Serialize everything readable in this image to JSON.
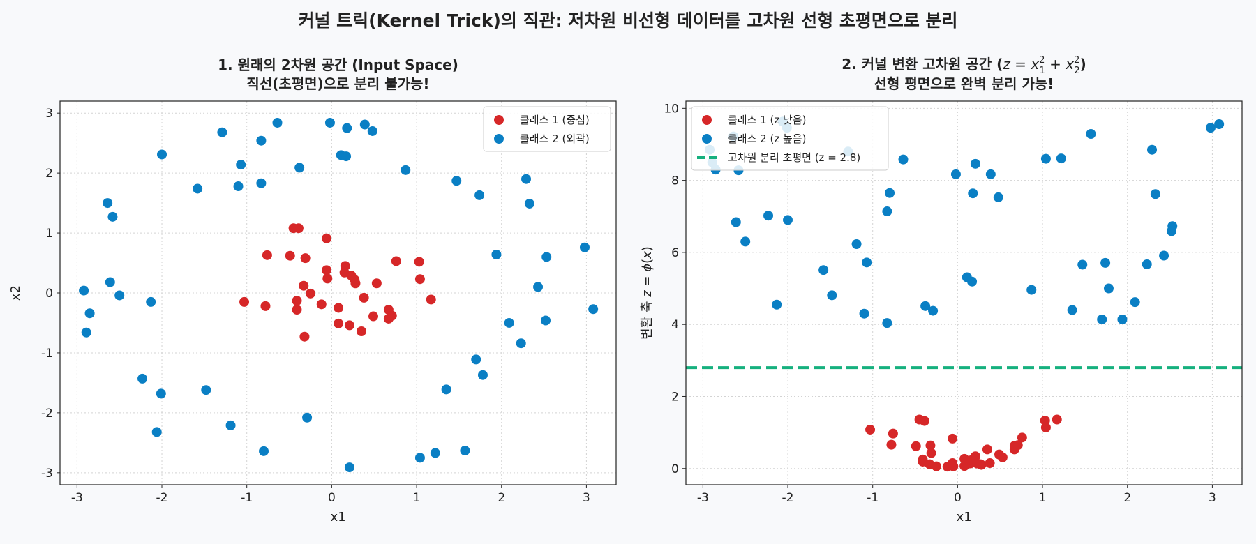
{
  "figure": {
    "suptitle": "커널 트릭(Kernel Trick)의 직관: 저차원 비선형 데이터를 고차원 선형 초평면으로 분리"
  },
  "colors": {
    "class1": "#d62728",
    "class2": "#0a7fc4",
    "boundary": "#16b07e",
    "grid": "#d3d3d3",
    "background": "#f8f9fb"
  },
  "chart_data": [
    {
      "type": "scatter",
      "title_lines": [
        "1. 원래의 2차원 공간 (Input Space)",
        "직선(초평면)으로 분리 불가능!"
      ],
      "xlabel": "x1",
      "ylabel": "x2",
      "xlim": [
        -3.2,
        3.35
      ],
      "ylim": [
        -3.2,
        3.2
      ],
      "xticks": [
        -3,
        -2,
        -1,
        0,
        1,
        2,
        3
      ],
      "yticks": [
        -3,
        -2,
        -1,
        0,
        1,
        2,
        3
      ],
      "grid": true,
      "legend_position": "top-right",
      "series": [
        {
          "name": "클래스 1 (중심)",
          "color": "#d62728",
          "points": [
            [
              -1.03,
              -0.15
            ],
            [
              -0.78,
              -0.22
            ],
            [
              -0.76,
              0.63
            ],
            [
              -0.49,
              0.62
            ],
            [
              -0.45,
              1.08
            ],
            [
              -0.39,
              1.08
            ],
            [
              -0.41,
              -0.13
            ],
            [
              -0.41,
              -0.28
            ],
            [
              -0.33,
              0.12
            ],
            [
              -0.31,
              0.58
            ],
            [
              -0.32,
              -0.73
            ],
            [
              -0.25,
              -0.01
            ],
            [
              -0.12,
              -0.19
            ],
            [
              -0.06,
              0.91
            ],
            [
              -0.06,
              0.38
            ],
            [
              -0.05,
              0.24
            ],
            [
              0.08,
              -0.25
            ],
            [
              0.08,
              -0.51
            ],
            [
              0.15,
              0.34
            ],
            [
              0.16,
              0.45
            ],
            [
              0.21,
              -0.54
            ],
            [
              0.23,
              0.29
            ],
            [
              0.27,
              0.22
            ],
            [
              0.28,
              0.16
            ],
            [
              0.35,
              -0.64
            ],
            [
              0.38,
              -0.08
            ],
            [
              0.49,
              -0.39
            ],
            [
              0.53,
              0.16
            ],
            [
              0.67,
              -0.28
            ],
            [
              0.67,
              -0.43
            ],
            [
              0.71,
              -0.38
            ],
            [
              0.76,
              0.53
            ],
            [
              1.03,
              0.52
            ],
            [
              1.04,
              0.23
            ],
            [
              1.17,
              -0.11
            ]
          ]
        },
        {
          "name": "클래스 2 (외곽)",
          "color": "#0a7fc4",
          "points": [
            [
              -2.92,
              0.04
            ],
            [
              -2.89,
              -0.66
            ],
            [
              -2.85,
              -0.34
            ],
            [
              -2.64,
              1.5
            ],
            [
              -2.61,
              0.18
            ],
            [
              -2.58,
              1.27
            ],
            [
              -2.5,
              -0.04
            ],
            [
              -2.23,
              -1.43
            ],
            [
              -2.13,
              -0.15
            ],
            [
              -2.06,
              -2.32
            ],
            [
              -2.01,
              -1.68
            ],
            [
              -2.0,
              2.31
            ],
            [
              -1.58,
              1.74
            ],
            [
              -1.48,
              -1.62
            ],
            [
              -1.29,
              2.68
            ],
            [
              -1.19,
              -2.21
            ],
            [
              -1.1,
              1.78
            ],
            [
              -1.07,
              2.14
            ],
            [
              -0.83,
              2.54
            ],
            [
              -0.83,
              1.83
            ],
            [
              -0.8,
              -2.64
            ],
            [
              -0.64,
              2.84
            ],
            [
              -0.38,
              2.09
            ],
            [
              -0.29,
              -2.08
            ],
            [
              -0.02,
              2.84
            ],
            [
              0.11,
              2.3
            ],
            [
              0.17,
              2.28
            ],
            [
              0.18,
              2.75
            ],
            [
              0.21,
              -2.91
            ],
            [
              0.39,
              2.81
            ],
            [
              0.48,
              2.7
            ],
            [
              0.87,
              2.05
            ],
            [
              1.04,
              -2.75
            ],
            [
              1.22,
              -2.67
            ],
            [
              1.35,
              -1.61
            ],
            [
              1.47,
              1.87
            ],
            [
              1.57,
              -2.63
            ],
            [
              1.7,
              -1.11
            ],
            [
              1.74,
              1.63
            ],
            [
              1.78,
              -1.37
            ],
            [
              1.94,
              0.64
            ],
            [
              2.09,
              -0.5
            ],
            [
              2.23,
              -0.84
            ],
            [
              2.29,
              1.9
            ],
            [
              2.33,
              1.49
            ],
            [
              2.43,
              0.1
            ],
            [
              2.52,
              -0.46
            ],
            [
              2.53,
              0.6
            ],
            [
              2.98,
              0.76
            ],
            [
              3.08,
              -0.27
            ]
          ]
        }
      ]
    },
    {
      "type": "scatter",
      "title_prefix": "2. 커널 변환 고차원 공간 (",
      "title_suffix": ")",
      "title_line2": "선형 평면으로 완벽 분리 가능!",
      "title_formula": {
        "z": "z",
        "x": "x",
        "eq": " = ",
        "plus": " + ",
        "sub1": "1",
        "sub2": "2",
        "sup": "2"
      },
      "xlabel": "x1",
      "ylabel_text": "변환 축 ",
      "ylabel_formula": {
        "z": "z",
        "eq": " = ",
        "phi": "ϕ",
        "open": "(",
        "x": "x",
        "close": ")"
      },
      "xlim": [
        -3.2,
        3.35
      ],
      "ylim": [
        -0.45,
        10.2
      ],
      "xticks": [
        -3,
        -2,
        -1,
        0,
        1,
        2,
        3
      ],
      "yticks": [
        0,
        2,
        4,
        6,
        8,
        10
      ],
      "grid": true,
      "legend_position": "top-left",
      "boundary": {
        "z": 2.8,
        "label": "고차원 분리 초평면 (z = 2.8)"
      },
      "series": [
        {
          "name": "클래스 1 (z 낮음)",
          "color": "#d62728",
          "points": [
            [
              -1.03,
              1.08
            ],
            [
              -0.78,
              0.66
            ],
            [
              -0.76,
              0.97
            ],
            [
              -0.49,
              0.62
            ],
            [
              -0.45,
              1.36
            ],
            [
              -0.39,
              1.32
            ],
            [
              -0.41,
              0.19
            ],
            [
              -0.41,
              0.25
            ],
            [
              -0.33,
              0.12
            ],
            [
              -0.31,
              0.43
            ],
            [
              -0.32,
              0.64
            ],
            [
              -0.25,
              0.06
            ],
            [
              -0.12,
              0.05
            ],
            [
              -0.06,
              0.83
            ],
            [
              -0.06,
              0.15
            ],
            [
              -0.05,
              0.06
            ],
            [
              0.08,
              0.07
            ],
            [
              0.08,
              0.27
            ],
            [
              0.15,
              0.14
            ],
            [
              0.16,
              0.23
            ],
            [
              0.21,
              0.34
            ],
            [
              0.23,
              0.14
            ],
            [
              0.27,
              0.12
            ],
            [
              0.28,
              0.1
            ],
            [
              0.35,
              0.53
            ],
            [
              0.38,
              0.15
            ],
            [
              0.49,
              0.39
            ],
            [
              0.53,
              0.31
            ],
            [
              0.67,
              0.53
            ],
            [
              0.67,
              0.63
            ],
            [
              0.71,
              0.65
            ],
            [
              0.76,
              0.86
            ],
            [
              1.03,
              1.33
            ],
            [
              1.04,
              1.14
            ],
            [
              1.17,
              1.36
            ]
          ]
        },
        {
          "name": "클래스 2 (z 높음)",
          "color": "#0a7fc4",
          "points": [
            [
              -2.92,
              8.85
            ],
            [
              -2.89,
              8.5
            ],
            [
              -2.85,
              8.3
            ],
            [
              -2.64,
              9.22
            ],
            [
              -2.61,
              6.84
            ],
            [
              -2.58,
              8.28
            ],
            [
              -2.5,
              6.3
            ],
            [
              -2.23,
              7.02
            ],
            [
              -2.13,
              4.55
            ],
            [
              -2.06,
              9.63
            ],
            [
              -2.01,
              9.46
            ],
            [
              -2.0,
              6.9
            ],
            [
              -1.58,
              5.51
            ],
            [
              -1.48,
              4.81
            ],
            [
              -1.29,
              8.8
            ],
            [
              -1.19,
              6.23
            ],
            [
              -1.1,
              4.3
            ],
            [
              -1.07,
              5.72
            ],
            [
              -0.83,
              7.14
            ],
            [
              -0.83,
              4.04
            ],
            [
              -0.8,
              7.65
            ],
            [
              -0.64,
              8.58
            ],
            [
              -0.38,
              4.51
            ],
            [
              -0.29,
              4.38
            ],
            [
              -0.02,
              8.17
            ],
            [
              0.11,
              5.31
            ],
            [
              0.17,
              5.19
            ],
            [
              0.18,
              7.64
            ],
            [
              0.21,
              8.46
            ],
            [
              0.39,
              8.17
            ],
            [
              0.48,
              7.53
            ],
            [
              0.87,
              4.96
            ],
            [
              1.04,
              8.6
            ],
            [
              1.22,
              8.61
            ],
            [
              1.35,
              4.4
            ],
            [
              1.47,
              5.66
            ],
            [
              1.57,
              9.29
            ],
            [
              1.7,
              4.14
            ],
            [
              1.74,
              5.71
            ],
            [
              1.78,
              5.0
            ],
            [
              1.94,
              4.14
            ],
            [
              2.09,
              4.62
            ],
            [
              2.23,
              5.67
            ],
            [
              2.29,
              8.85
            ],
            [
              2.33,
              7.62
            ],
            [
              2.43,
              5.91
            ],
            [
              2.52,
              6.59
            ],
            [
              2.53,
              6.73
            ],
            [
              2.98,
              9.46
            ],
            [
              3.08,
              9.56
            ]
          ]
        }
      ]
    }
  ]
}
